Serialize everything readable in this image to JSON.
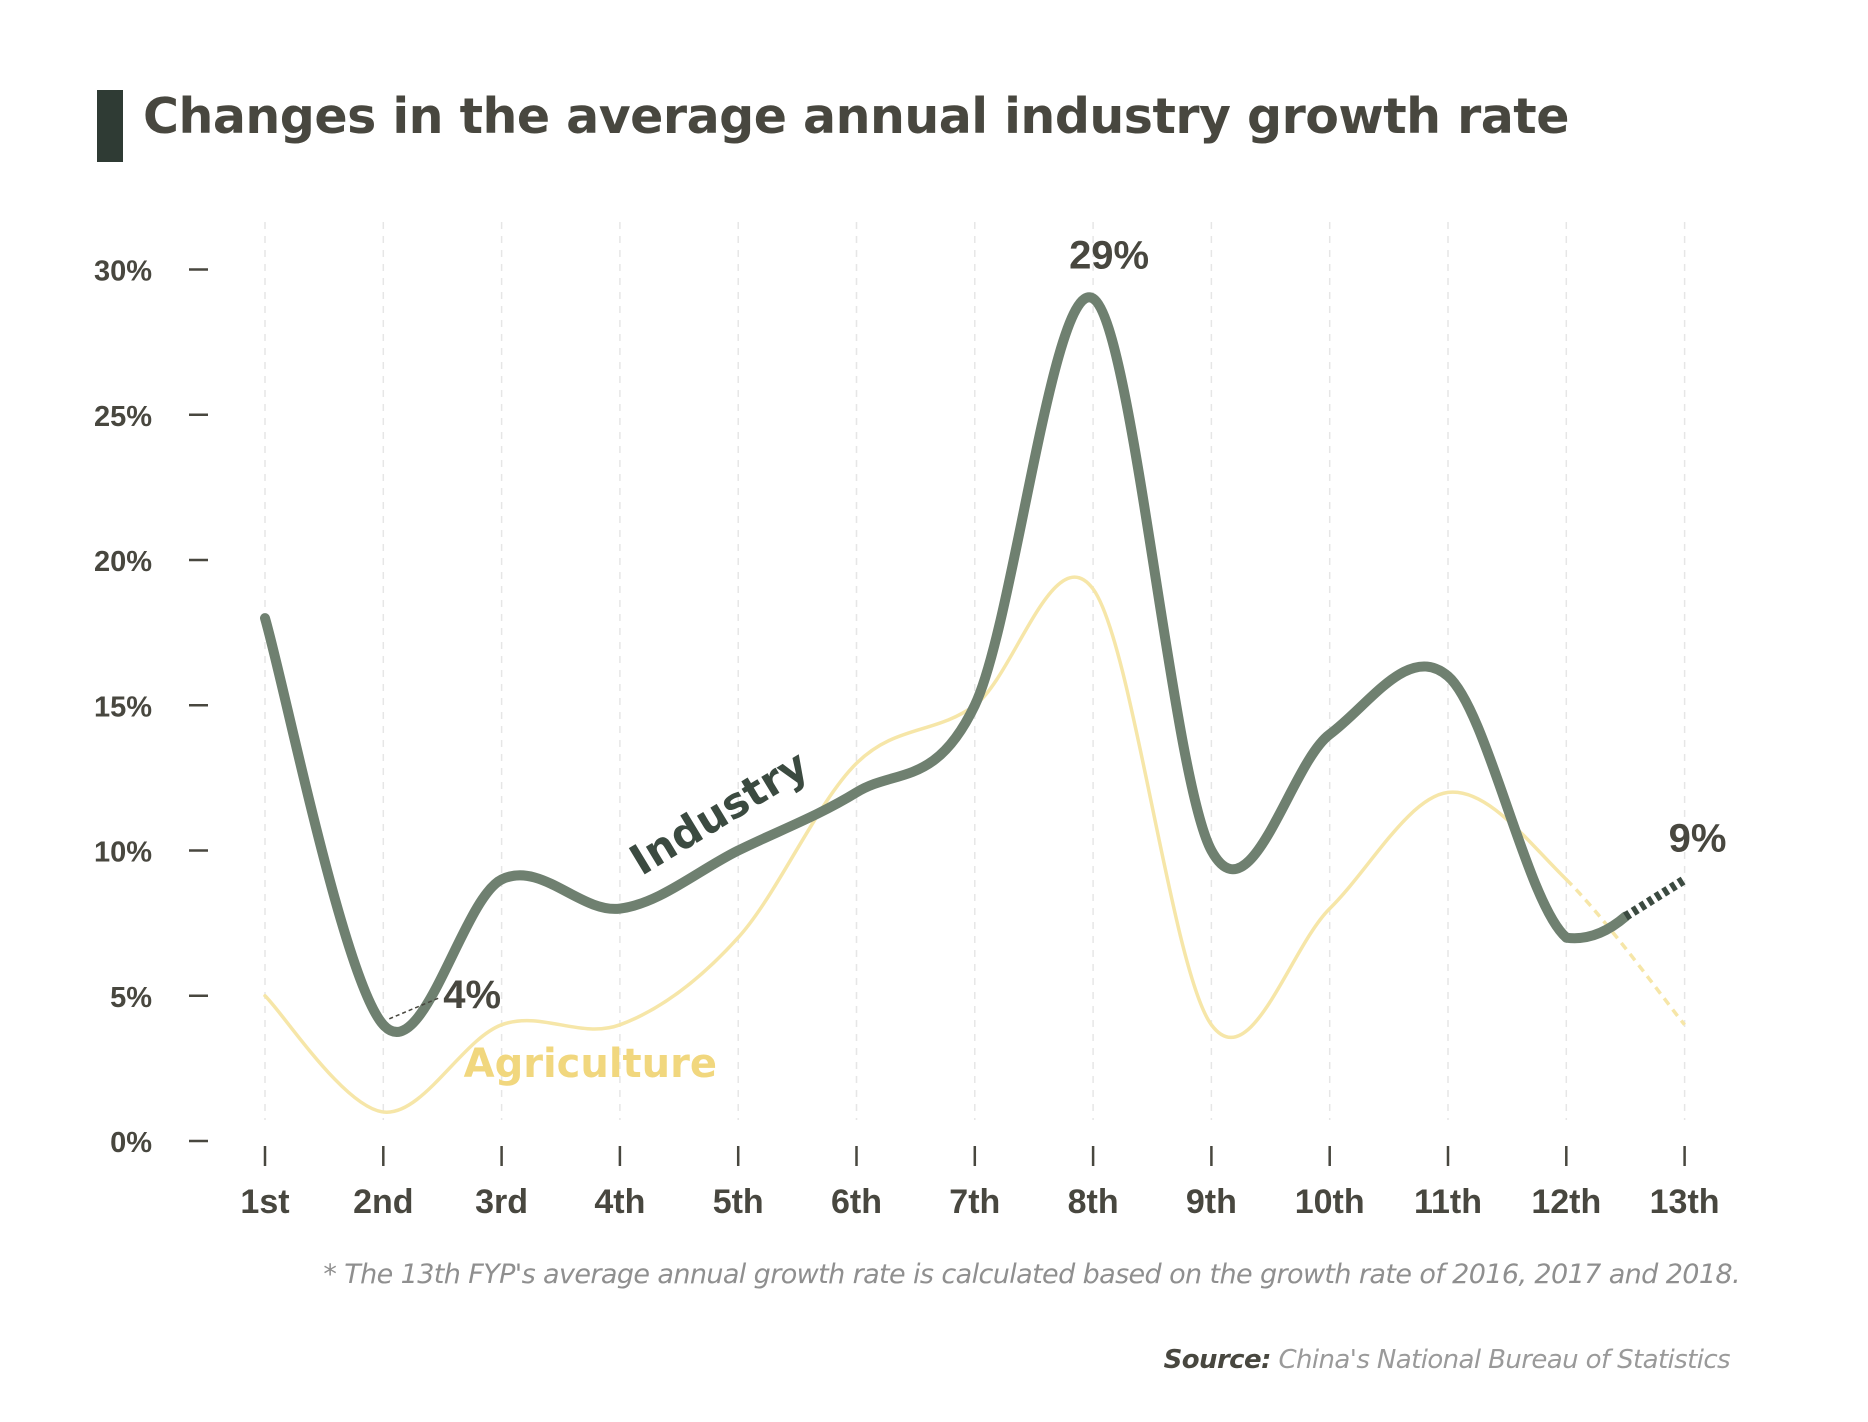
{
  "title": "Changes in the average annual industry growth rate",
  "footnote": "* The 13th FYP's average annual growth rate is calculated based on the growth rate of 2016, 2017 and 2018.",
  "source_label": "Source:",
  "source_value": "China's National Bureau of Statistics",
  "colors": {
    "industry": "#6f8070",
    "agriculture": "#f6e6a8",
    "agriculture_label": "#f1d77e",
    "dark_text": "#48473f",
    "title_accent": "#2f3b34"
  },
  "chart_data": {
    "type": "line",
    "categories": [
      "1st",
      "2nd",
      "3rd",
      "4th",
      "5th",
      "6th",
      "7th",
      "8th",
      "9th",
      "10th",
      "11th",
      "12th",
      "13th"
    ],
    "ylim": [
      0,
      30
    ],
    "yticks": [
      0,
      5,
      10,
      15,
      20,
      25,
      30
    ],
    "ytick_labels": [
      "0%",
      "5%",
      "10%",
      "15%",
      "20%",
      "25%",
      "30%"
    ],
    "grid": "vertical dashed",
    "series": [
      {
        "name": "Industry",
        "values": [
          18,
          4,
          9,
          8,
          10,
          12,
          15,
          29,
          10,
          14,
          16,
          7,
          9
        ],
        "last_segment_dashed": true
      },
      {
        "name": "Agriculture",
        "values": [
          5,
          1,
          4,
          4,
          7,
          13,
          15,
          19,
          4,
          8,
          12,
          9,
          4
        ],
        "last_segment_dashed": true
      }
    ],
    "annotations": [
      {
        "series": "Industry",
        "index": 1,
        "label": "4%"
      },
      {
        "series": "Industry",
        "index": 7,
        "label": "29%"
      },
      {
        "series": "Industry",
        "index": 12,
        "label": "9%"
      }
    ]
  }
}
